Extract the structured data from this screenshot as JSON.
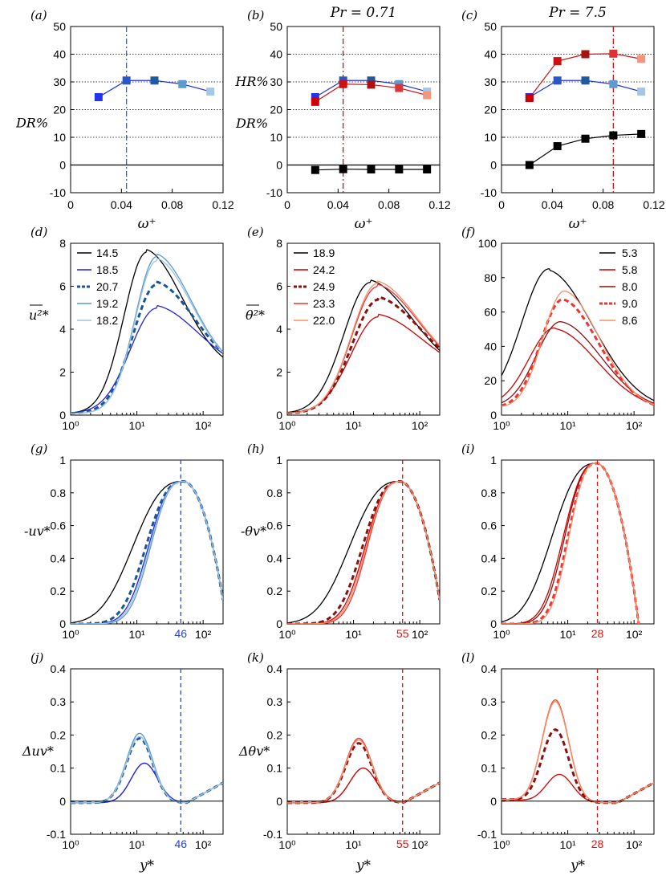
{
  "figure": {
    "column_titles": [
      "",
      "Pr = 0.71",
      "Pr = 7.5"
    ],
    "xlabel_top": "ω⁺",
    "xlabel_bottom": "y*"
  },
  "colors": {
    "blue": [
      "#2222dd",
      "#1f4fbf",
      "#1a5599",
      "#5a9ac8",
      "#9cc4e0"
    ],
    "red": [
      "#cc0000",
      "#dd1111",
      "#881111",
      "#ee3333",
      "#f5906a"
    ],
    "black": "#000000"
  },
  "chart_data": [
    {
      "id": "a",
      "label": "(a)",
      "type": "scatter-line",
      "title": "",
      "xlabel": "ω⁺",
      "ylabel": "DR%",
      "xlim": [
        0,
        0.12
      ],
      "ylim": [
        -10,
        50
      ],
      "xticks": [
        "0",
        "0.04",
        "0.08",
        "0.12"
      ],
      "yticks": [
        "-10",
        "0",
        "10",
        "20",
        "30",
        "40",
        "50"
      ],
      "x": [
        0.022,
        0.044,
        0.066,
        0.088,
        0.11
      ],
      "series": [
        {
          "name": "DR",
          "values": [
            24.5,
            30.5,
            30.5,
            29.2,
            26.5
          ],
          "style": "blue"
        }
      ],
      "vline": 0.044,
      "vline_color": "blue",
      "hlines_dotted": [
        10,
        20,
        30,
        40
      ]
    },
    {
      "id": "b",
      "label": "(b)",
      "type": "scatter-line",
      "title": "Pr = 0.71",
      "xlabel": "ω⁺",
      "ylabel": "HR% DR%",
      "ylabels": [
        "HR%",
        "DR%"
      ],
      "xlim": [
        0,
        0.12
      ],
      "ylim": [
        -10,
        50
      ],
      "xticks": [
        "0",
        "0.04",
        "0.08",
        "0.12"
      ],
      "yticks": [
        "-10",
        "0",
        "10",
        "20",
        "30",
        "40",
        "50"
      ],
      "x": [
        0.022,
        0.044,
        0.066,
        0.088,
        0.11
      ],
      "series": [
        {
          "name": "DR",
          "values": [
            24.5,
            30.5,
            30.5,
            29.2,
            26.5
          ],
          "style": "blue"
        },
        {
          "name": "HR",
          "values": [
            22.8,
            29.2,
            29.0,
            27.8,
            25.2
          ],
          "style": "red"
        },
        {
          "name": "diff",
          "values": [
            -1.8,
            -1.5,
            -1.6,
            -1.6,
            -1.6
          ],
          "style": "black"
        }
      ],
      "vline": 0.044,
      "vline_color": "red",
      "hlines_dotted": [
        10,
        20,
        30,
        40
      ]
    },
    {
      "id": "c",
      "label": "(c)",
      "type": "scatter-line",
      "title": "Pr = 7.5",
      "xlabel": "ω⁺",
      "ylabel": "",
      "xlim": [
        0,
        0.12
      ],
      "ylim": [
        -10,
        50
      ],
      "xticks": [
        "0",
        "0.04",
        "0.08",
        "0.12"
      ],
      "yticks": [
        "-10",
        "0",
        "10",
        "20",
        "30",
        "40",
        "50"
      ],
      "x": [
        0.022,
        0.044,
        0.066,
        0.088,
        0.11
      ],
      "series": [
        {
          "name": "DR",
          "values": [
            24.5,
            30.5,
            30.5,
            29.2,
            26.5
          ],
          "style": "blue"
        },
        {
          "name": "HR",
          "values": [
            24.2,
            37.5,
            40.0,
            40.2,
            38.3
          ],
          "style": "red"
        },
        {
          "name": "diff",
          "values": [
            0.0,
            6.8,
            9.5,
            10.7,
            11.2
          ],
          "style": "black"
        }
      ],
      "vline": 0.088,
      "vline_color": "red",
      "hlines_dotted": [
        10,
        20,
        30,
        40
      ]
    },
    {
      "id": "d",
      "label": "(d)",
      "type": "line",
      "xscale": "log",
      "xlabel": "",
      "ylabel": "u²*",
      "xlim": [
        1,
        200
      ],
      "ylim": [
        0,
        8
      ],
      "xticks": [
        "10⁰",
        "10¹",
        "10²"
      ],
      "yticks": [
        "0",
        "2",
        "4",
        "6",
        "8"
      ],
      "legend": [
        "14.5",
        "18.5",
        "20.7",
        "19.2",
        "18.2"
      ],
      "series": [
        {
          "name": "14.5",
          "peak": 7.5,
          "peak_at": 14,
          "width": 0.34,
          "tail": 2.1,
          "color": 0,
          "palette": "black"
        },
        {
          "name": "18.5",
          "peak": 4.9,
          "peak_at": 20,
          "width": 0.4,
          "tail": 2.0,
          "color": 0,
          "palette": "blue"
        },
        {
          "name": "20.7",
          "peak": 6.0,
          "peak_at": 20,
          "width": 0.36,
          "tail": 2.0,
          "color": 2,
          "palette": "blue",
          "dashed": true
        },
        {
          "name": "19.2",
          "peak": 7.3,
          "peak_at": 20,
          "width": 0.33,
          "tail": 2.0,
          "color": 3,
          "palette": "blue"
        },
        {
          "name": "18.2",
          "peak": 7.1,
          "peak_at": 20,
          "width": 0.33,
          "tail": 2.0,
          "color": 4,
          "palette": "blue"
        }
      ]
    },
    {
      "id": "e",
      "label": "(e)",
      "type": "line",
      "xscale": "log",
      "xlabel": "",
      "ylabel": "θ²*",
      "xlim": [
        1,
        200
      ],
      "ylim": [
        0,
        8
      ],
      "xticks": [
        "10⁰",
        "10¹",
        "10²"
      ],
      "yticks": [
        "0",
        "2",
        "4",
        "6",
        "8"
      ],
      "legend": [
        "18.9",
        "24.2",
        "24.9",
        "23.3",
        "22.0"
      ],
      "series": [
        {
          "name": "18.9",
          "peak": 6.1,
          "peak_at": 18,
          "width": 0.4,
          "tail": 1.9,
          "color": 0,
          "palette": "black"
        },
        {
          "name": "24.2",
          "peak": 4.5,
          "peak_at": 24,
          "width": 0.42,
          "tail": 1.9,
          "color": 0,
          "palette": "red"
        },
        {
          "name": "24.9",
          "peak": 5.3,
          "peak_at": 24,
          "width": 0.4,
          "tail": 1.9,
          "color": 2,
          "palette": "red",
          "dashed": true
        },
        {
          "name": "23.3",
          "peak": 5.9,
          "peak_at": 23,
          "width": 0.39,
          "tail": 1.9,
          "color": 3,
          "palette": "red"
        },
        {
          "name": "22.0",
          "peak": 6.05,
          "peak_at": 23,
          "width": 0.39,
          "tail": 1.9,
          "color": 4,
          "palette": "red"
        }
      ]
    },
    {
      "id": "f",
      "label": "(f)",
      "type": "line",
      "xscale": "log",
      "xlabel": "",
      "ylabel": "",
      "xlim": [
        1,
        200
      ],
      "ylim": [
        0,
        100
      ],
      "xticks": [
        "10⁰",
        "10¹",
        "10²"
      ],
      "yticks": [
        "0",
        "20",
        "40",
        "60",
        "80",
        "100"
      ],
      "legend": [
        "5.3",
        "5.8",
        "8.0",
        "9.0",
        "8.6"
      ],
      "series": [
        {
          "name": "5.3",
          "peak": 84,
          "peak_at": 5.3,
          "width": 0.42,
          "tail": 3,
          "color": 0,
          "palette": "black"
        },
        {
          "name": "5.8",
          "peak": 50,
          "peak_at": 6.5,
          "width": 0.4,
          "tail": 3,
          "color": 0,
          "palette": "red"
        },
        {
          "name": "8.0",
          "peak": 54,
          "peak_at": 8.0,
          "width": 0.38,
          "tail": 3,
          "color": 2,
          "palette": "red"
        },
        {
          "name": "9.0",
          "peak": 67,
          "peak_at": 8.5,
          "width": 0.34,
          "tail": 3,
          "color": 3,
          "palette": "red",
          "dashed": true
        },
        {
          "name": "8.6",
          "peak": 72,
          "peak_at": 9.0,
          "width": 0.33,
          "tail": 3,
          "color": 4,
          "palette": "red"
        }
      ]
    },
    {
      "id": "g",
      "label": "(g)",
      "type": "line",
      "xscale": "log",
      "xlabel": "",
      "ylabel": "-uv*",
      "xlim": [
        1,
        200
      ],
      "ylim": [
        0,
        1
      ],
      "xticks": [
        "10⁰",
        "10¹",
        "10²"
      ],
      "yticks": [
        "0",
        "0.2",
        "0.4",
        "0.6",
        "0.8",
        "1"
      ],
      "vline": 46,
      "vline_label": "46",
      "vline_color": "blue",
      "palette": "blue"
    },
    {
      "id": "h",
      "label": "(h)",
      "type": "line",
      "xscale": "log",
      "xlabel": "",
      "ylabel": "-θv*",
      "xlim": [
        1,
        200
      ],
      "ylim": [
        0,
        1
      ],
      "xticks": [
        "10⁰",
        "10¹",
        "10²"
      ],
      "yticks": [
        "0",
        "0.2",
        "0.4",
        "0.6",
        "0.8",
        "1"
      ],
      "vline": 55,
      "vline_label": "55",
      "vline_color": "red",
      "palette": "red"
    },
    {
      "id": "i",
      "label": "(i)",
      "type": "line",
      "xscale": "log",
      "xlabel": "",
      "ylabel": "",
      "xlim": [
        1,
        200
      ],
      "ylim": [
        0,
        1
      ],
      "xticks": [
        "10⁰",
        "10¹",
        "10²"
      ],
      "yticks": [
        "0",
        "0.2",
        "0.4",
        "0.6",
        "0.8",
        "1"
      ],
      "vline": 28,
      "vline_label": "28",
      "vline_color": "red",
      "palette": "red"
    },
    {
      "id": "j",
      "label": "(j)",
      "type": "line",
      "xscale": "log",
      "xlabel": "y*",
      "ylabel": "Δuv*",
      "xlim": [
        1,
        200
      ],
      "ylim": [
        -0.1,
        0.4
      ],
      "xticks": [
        "10⁰",
        "10¹",
        "10²"
      ],
      "yticks": [
        "-0.1",
        "0",
        "0.1",
        "0.2",
        "0.3",
        "0.4"
      ],
      "vline": 46,
      "vline_label": "46",
      "vline_color": "blue",
      "palette": "blue",
      "peaks": [
        0.12,
        0.195,
        0.21,
        0.2
      ],
      "peak_at": [
        13,
        11,
        11,
        11
      ]
    },
    {
      "id": "k",
      "label": "(k)",
      "type": "line",
      "xscale": "log",
      "xlabel": "y*",
      "ylabel": "Δθv*",
      "xlim": [
        1,
        200
      ],
      "ylim": [
        -0.1,
        0.4
      ],
      "xticks": [
        "10⁰",
        "10¹",
        "10²"
      ],
      "yticks": [
        "-0.1",
        "0",
        "0.1",
        "0.2",
        "0.3",
        "0.4"
      ],
      "vline": 55,
      "vline_label": "55",
      "vline_color": "red",
      "palette": "red",
      "peaks": [
        0.105,
        0.18,
        0.195,
        0.19
      ],
      "peak_at": [
        14,
        12,
        12,
        12
      ]
    },
    {
      "id": "l",
      "label": "(l)",
      "type": "line",
      "xscale": "log",
      "xlabel": "y*",
      "ylabel": "",
      "xlim": [
        1,
        200
      ],
      "ylim": [
        -0.1,
        0.4
      ],
      "xticks": [
        "10⁰",
        "10¹",
        "10²"
      ],
      "yticks": [
        "-0.1",
        "0",
        "0.1",
        "0.2",
        "0.3",
        "0.4"
      ],
      "vline": 28,
      "vline_label": "28",
      "vline_color": "red",
      "palette": "red",
      "peaks": [
        0.085,
        0.22,
        0.31,
        0.305
      ],
      "peak_at": [
        7.5,
        6.5,
        6.5,
        6.5
      ]
    }
  ]
}
